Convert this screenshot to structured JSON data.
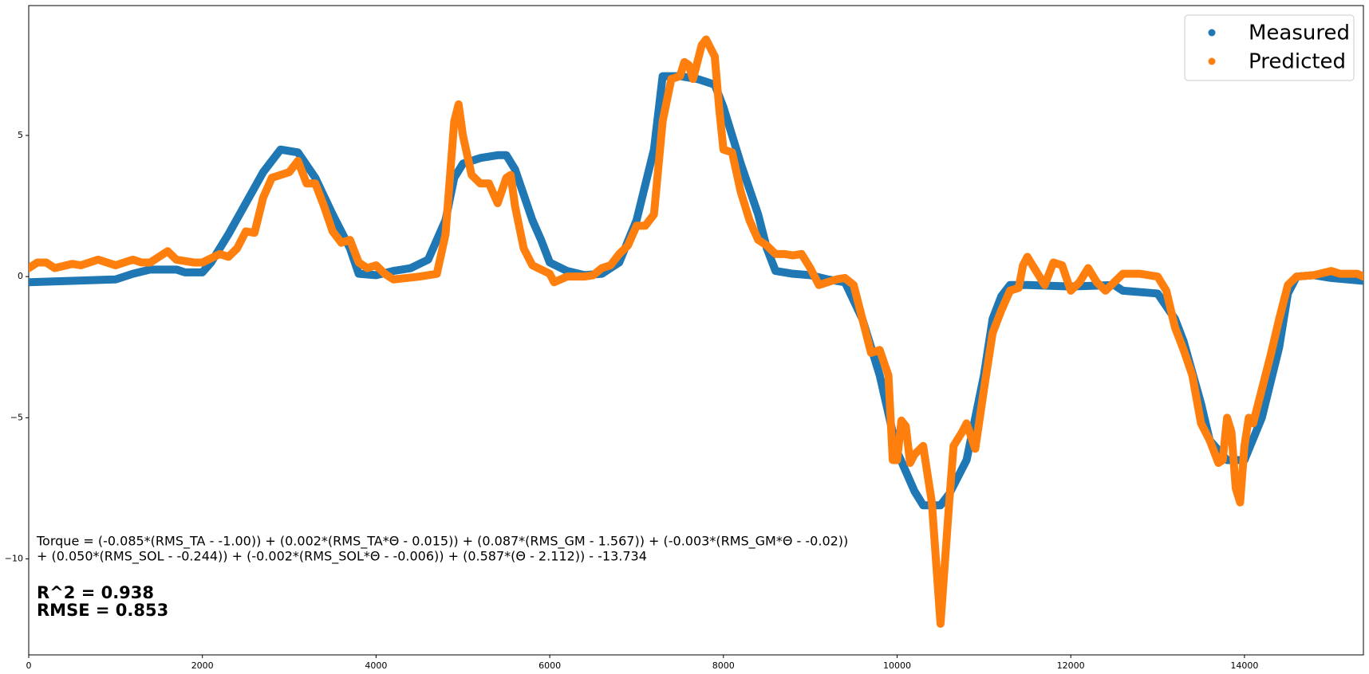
{
  "chart_data": {
    "type": "line",
    "xlim": [
      0,
      15370
    ],
    "ylim": [
      -13.4,
      9.6
    ],
    "xticks": [
      0,
      2000,
      4000,
      6000,
      8000,
      10000,
      12000,
      14000
    ],
    "yticks": [
      {
        "value": -10,
        "label": "−10"
      },
      {
        "value": -5,
        "label": "−5"
      },
      0,
      5
    ],
    "legend": "upper right",
    "annotations": [
      "Torque = (-0.085*(RMS_TA - -1.00)) + (0.002*(RMS_TA*Θ - 0.015)) + (0.087*(RMS_GM - 1.567)) + (-0.003*(RMS_GM*Θ - -0.02))",
      "+ (0.050*(RMS_SOL - -0.244)) + (-0.002*(RMS_SOL*Θ - -0.006)) + (0.587*(Θ - 2.112)) - -13.734",
      "R^2 = 0.938",
      "RMSE = 0.853"
    ],
    "series": [
      {
        "name": "Measured",
        "color": "#1f77b4",
        "x": [
          0,
          500,
          1000,
          1200,
          1400,
          1700,
          1800,
          2000,
          2100,
          2300,
          2500,
          2700,
          2900,
          3100,
          3300,
          3500,
          3700,
          3800,
          4000,
          4200,
          4400,
          4600,
          4800,
          4900,
          5000,
          5200,
          5400,
          5500,
          5600,
          5800,
          5900,
          6000,
          6200,
          6400,
          6600,
          6800,
          7000,
          7200,
          7300,
          7500,
          7700,
          7900,
          8000,
          8200,
          8400,
          8500,
          8600,
          8800,
          9000,
          9200,
          9400,
          9600,
          9800,
          10000,
          10200,
          10300,
          10500,
          10600,
          10800,
          11000,
          11100,
          11200,
          11300,
          11500,
          12000,
          12500,
          12600,
          13000,
          13200,
          13300,
          13500,
          13600,
          13800,
          14000,
          14200,
          14400,
          14500,
          14600,
          14800,
          15000,
          15370
        ],
        "values": [
          -0.2,
          -0.15,
          -0.1,
          0.1,
          0.25,
          0.25,
          0.15,
          0.15,
          0.5,
          1.5,
          2.6,
          3.7,
          4.5,
          4.4,
          3.5,
          2.2,
          1.0,
          0.1,
          0.05,
          0.2,
          0.3,
          0.6,
          2.0,
          3.5,
          4.0,
          4.2,
          4.3,
          4.3,
          3.8,
          2.0,
          1.3,
          0.5,
          0.2,
          0.05,
          0.1,
          0.5,
          2.0,
          4.5,
          7.1,
          7.1,
          7.0,
          6.8,
          6.0,
          4.0,
          2.2,
          1.0,
          0.2,
          0.1,
          0.05,
          -0.1,
          -0.2,
          -1.5,
          -3.5,
          -6.2,
          -7.6,
          -8.1,
          -8.1,
          -7.7,
          -6.5,
          -3.5,
          -1.5,
          -0.7,
          -0.3,
          -0.3,
          -0.35,
          -0.3,
          -0.5,
          -0.6,
          -1.5,
          -2.3,
          -4.5,
          -5.8,
          -6.5,
          -6.5,
          -5.0,
          -2.5,
          -0.6,
          0.0,
          0.05,
          -0.05,
          -0.15
        ]
      },
      {
        "name": "Predicted",
        "color": "#ff7f0e",
        "x": [
          0,
          100,
          200,
          300,
          500,
          600,
          800,
          1000,
          1200,
          1300,
          1400,
          1600,
          1700,
          1900,
          2000,
          2200,
          2300,
          2400,
          2500,
          2600,
          2700,
          2800,
          2900,
          3000,
          3100,
          3200,
          3300,
          3400,
          3500,
          3600,
          3700,
          3800,
          3900,
          4000,
          4100,
          4200,
          4500,
          4700,
          4800,
          4900,
          4950,
          5000,
          5100,
          5200,
          5300,
          5400,
          5500,
          5550,
          5600,
          5700,
          5800,
          6000,
          6050,
          6200,
          6400,
          6500,
          6600,
          6700,
          6800,
          6900,
          7000,
          7100,
          7200,
          7300,
          7400,
          7500,
          7550,
          7600,
          7650,
          7750,
          7800,
          7900,
          7950,
          8000,
          8100,
          8200,
          8300,
          8400,
          8500,
          8600,
          8700,
          8800,
          8900,
          9000,
          9100,
          9200,
          9300,
          9400,
          9500,
          9600,
          9700,
          9800,
          9900,
          9950,
          10000,
          10050,
          10100,
          10150,
          10200,
          10300,
          10400,
          10500,
          10600,
          10650,
          10750,
          10800,
          10900,
          11000,
          11100,
          11200,
          11300,
          11400,
          11450,
          11500,
          11600,
          11700,
          11800,
          11900,
          12000,
          12100,
          12200,
          12300,
          12400,
          12500,
          12600,
          12800,
          13000,
          13100,
          13200,
          13300,
          13400,
          13500,
          13600,
          13700,
          13750,
          13800,
          13850,
          13900,
          13950,
          14000,
          14050,
          14100,
          14200,
          14300,
          14400,
          14500,
          14600,
          14800,
          15000,
          15100,
          15300,
          15370
        ],
        "values": [
          0.3,
          0.5,
          0.5,
          0.3,
          0.45,
          0.4,
          0.6,
          0.4,
          0.6,
          0.5,
          0.5,
          0.9,
          0.6,
          0.5,
          0.5,
          0.8,
          0.7,
          1.0,
          1.6,
          1.55,
          2.8,
          3.5,
          3.6,
          3.7,
          4.1,
          3.3,
          3.3,
          2.5,
          1.6,
          1.2,
          1.3,
          0.5,
          0.3,
          0.4,
          0.1,
          -0.1,
          0.0,
          0.1,
          1.5,
          5.5,
          6.1,
          5.0,
          3.6,
          3.3,
          3.3,
          2.6,
          3.5,
          3.6,
          2.5,
          1.0,
          0.4,
          0.1,
          -0.2,
          0.0,
          0.0,
          0.05,
          0.3,
          0.4,
          0.8,
          1.1,
          1.8,
          1.8,
          2.2,
          5.5,
          7.0,
          7.1,
          7.6,
          7.5,
          7.0,
          8.2,
          8.4,
          7.8,
          6.0,
          4.5,
          4.4,
          3.0,
          2.0,
          1.3,
          1.1,
          0.8,
          0.8,
          0.75,
          0.8,
          0.3,
          -0.3,
          -0.2,
          -0.1,
          -0.05,
          -0.3,
          -1.5,
          -2.7,
          -2.6,
          -3.5,
          -6.5,
          -6.5,
          -5.1,
          -5.3,
          -6.6,
          -6.3,
          -6.0,
          -8.0,
          -12.3,
          -8.0,
          -6.0,
          -5.5,
          -5.2,
          -6.1,
          -4.0,
          -2.0,
          -1.2,
          -0.5,
          -0.4,
          0.4,
          0.7,
          0.2,
          -0.3,
          0.5,
          0.4,
          -0.5,
          -0.2,
          0.3,
          -0.2,
          -0.5,
          -0.2,
          0.1,
          0.1,
          0.0,
          -0.5,
          -1.8,
          -2.6,
          -3.5,
          -5.2,
          -5.8,
          -6.6,
          -6.5,
          -5.0,
          -5.5,
          -7.5,
          -8.0,
          -6.0,
          -5.0,
          -5.2,
          -4.0,
          -2.8,
          -1.5,
          -0.3,
          0.0,
          0.05,
          0.2,
          0.1,
          0.1,
          0.0
        ]
      }
    ]
  }
}
